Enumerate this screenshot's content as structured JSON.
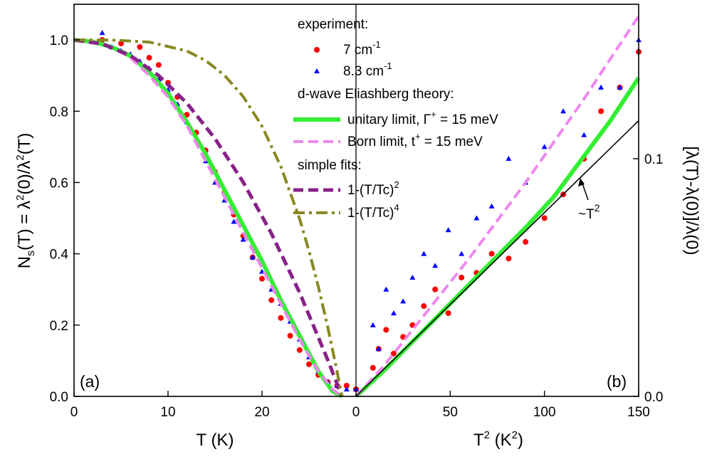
{
  "chart_data": [
    {
      "panel": "(a)",
      "type": "line+scatter",
      "xlabel": "T (K)",
      "ylabel": "N_s(T) = λ²(0)/λ²(T)",
      "xlim": [
        0,
        30
      ],
      "ylim": [
        0,
        1.1
      ],
      "x_ticks": [
        0,
        10,
        20
      ],
      "y_ticks": [
        "0.0",
        "0.2",
        "0.4",
        "0.6",
        "0.8",
        "1.0"
      ],
      "series": [
        {
          "name": "7 cm-1",
          "style": "scatter",
          "marker": "circle",
          "color": "#ff0000",
          "x": [
            3,
            5,
            7,
            8,
            9,
            10,
            11,
            12,
            13,
            14,
            15,
            16,
            17,
            18,
            19,
            20,
            21,
            22,
            23,
            24,
            25,
            26,
            27,
            28,
            29,
            30
          ],
          "y": [
            1.0,
            0.99,
            0.98,
            0.95,
            0.93,
            0.88,
            0.84,
            0.79,
            0.74,
            0.69,
            0.63,
            0.57,
            0.51,
            0.45,
            0.39,
            0.33,
            0.27,
            0.22,
            0.17,
            0.13,
            0.09,
            0.06,
            0.04,
            0.03,
            0.03,
            0.02
          ]
        },
        {
          "name": "8.3 cm-1",
          "style": "scatter",
          "marker": "triangle",
          "color": "#0000ff",
          "x": [
            3,
            4,
            5,
            6,
            7,
            8,
            9,
            10,
            11,
            12,
            13,
            14,
            15,
            16,
            17,
            18,
            19,
            20,
            21,
            22,
            23,
            24,
            25,
            26,
            27,
            28,
            29,
            30
          ],
          "y": [
            1.02,
            0.98,
            0.97,
            0.96,
            0.94,
            0.92,
            0.89,
            0.86,
            0.82,
            0.77,
            0.72,
            0.66,
            0.6,
            0.55,
            0.49,
            0.44,
            0.39,
            0.35,
            0.3,
            0.26,
            0.21,
            0.16,
            0.11,
            0.07,
            0.04,
            0.03,
            0.02,
            0.02
          ]
        },
        {
          "name": "unitary limit, Γ⁺ = 15 meV",
          "style": "solid",
          "color": "#33ee33",
          "x": [
            0,
            2,
            4,
            6,
            8,
            10,
            12,
            14,
            16,
            18,
            20,
            22,
            24,
            26,
            27.5,
            28.5
          ],
          "y": [
            1.0,
            0.995,
            0.98,
            0.955,
            0.91,
            0.85,
            0.77,
            0.68,
            0.58,
            0.48,
            0.38,
            0.27,
            0.17,
            0.07,
            0.015,
            0.0
          ]
        },
        {
          "name": "Born limit, t⁺ = 15 meV",
          "style": "dashed",
          "color": "#ee88ee",
          "x": [
            0,
            2,
            4,
            6,
            8,
            10,
            12,
            14,
            16,
            18,
            20,
            22,
            24,
            26,
            27.5,
            28.5
          ],
          "y": [
            1.0,
            0.995,
            0.98,
            0.95,
            0.9,
            0.84,
            0.76,
            0.66,
            0.56,
            0.46,
            0.36,
            0.26,
            0.16,
            0.07,
            0.02,
            0.0
          ]
        },
        {
          "name": "1-(T/Tc)^2",
          "style": "dashed",
          "color": "#882288",
          "x": [
            0,
            3,
            6,
            9,
            12,
            15,
            18,
            21,
            24,
            27,
            28.5
          ],
          "y": [
            1.0,
            0.989,
            0.956,
            0.9,
            0.823,
            0.723,
            0.601,
            0.457,
            0.291,
            0.102,
            0.0
          ]
        },
        {
          "name": "1-(T/Tc)^4",
          "style": "dashdot",
          "color": "#888822",
          "x": [
            0,
            4,
            8,
            12,
            14,
            16,
            18,
            20,
            22,
            24,
            25,
            26,
            27,
            28,
            28.5
          ],
          "y": [
            1.0,
            0.9996,
            0.994,
            0.969,
            0.942,
            0.901,
            0.841,
            0.758,
            0.645,
            0.498,
            0.408,
            0.307,
            0.194,
            0.068,
            0.0
          ]
        }
      ]
    },
    {
      "panel": "(b)",
      "type": "line+scatter",
      "xlabel": "T² (K²)",
      "ylabel": "[λ(T)-λ(0)]/λ(0)",
      "xlim": [
        0,
        150
      ],
      "ylim": [
        0,
        0.165
      ],
      "x_ticks": [
        0,
        50,
        100,
        150
      ],
      "y_ticks": [
        "0.0",
        "0.1"
      ],
      "annotation": "~T²",
      "series": [
        {
          "name": "7 cm-1",
          "style": "scatter",
          "marker": "circle",
          "color": "#ff0000",
          "x": [
            9,
            12,
            16,
            20,
            25,
            30,
            36,
            42,
            49,
            56,
            64,
            72,
            81,
            90,
            100,
            110,
            121,
            130,
            140,
            150
          ],
          "y": [
            0.012,
            0.02,
            0.028,
            0.018,
            0.025,
            0.03,
            0.038,
            0.045,
            0.035,
            0.05,
            0.052,
            0.06,
            0.058,
            0.065,
            0.075,
            0.085,
            0.1,
            0.12,
            0.13,
            0.145
          ]
        },
        {
          "name": "8.3 cm-1",
          "style": "scatter",
          "marker": "triangle",
          "color": "#0000ff",
          "x": [
            9,
            12,
            16,
            20,
            25,
            30,
            36,
            42,
            49,
            56,
            64,
            72,
            81,
            90,
            100,
            110,
            121,
            130,
            140,
            150
          ],
          "y": [
            0.03,
            0.02,
            0.045,
            0.035,
            0.04,
            0.05,
            0.06,
            0.055,
            0.07,
            0.06,
            0.075,
            0.08,
            0.1,
            0.09,
            0.105,
            0.12,
            0.11,
            0.13,
            0.13,
            0.15
          ]
        },
        {
          "name": "unitary limit, Γ⁺ = 15 meV",
          "style": "solid",
          "color": "#33ee33",
          "x": [
            0,
            15,
            30,
            45,
            60,
            75,
            90,
            105,
            120,
            135,
            150
          ],
          "y": [
            0,
            0.011,
            0.023,
            0.035,
            0.047,
            0.059,
            0.071,
            0.084,
            0.1,
            0.116,
            0.134
          ]
        },
        {
          "name": "Born limit, t⁺ = 15 meV",
          "style": "dashed",
          "color": "#ee88ee",
          "x": [
            0,
            15,
            30,
            45,
            60,
            75,
            90,
            105,
            120,
            135,
            150
          ],
          "y": [
            0,
            0.013,
            0.028,
            0.043,
            0.058,
            0.074,
            0.09,
            0.107,
            0.124,
            0.142,
            0.16
          ]
        },
        {
          "name": "~T²",
          "style": "solid",
          "color": "#000000",
          "x": [
            0,
            150
          ],
          "y": [
            0,
            0.116
          ]
        }
      ]
    }
  ],
  "legend": {
    "header_experiment": "experiment:",
    "entry_7": "7 cm",
    "entry_7_sup": "-1",
    "entry_83": "8.3 cm",
    "entry_83_sup": "-1",
    "header_theory": "d-wave Eliashberg theory:",
    "entry_unitary": "unitary limit, Γ",
    "entry_unitary_sup": "+",
    "entry_unitary_tail": " = 15 meV",
    "entry_born": "Born limit, t",
    "entry_born_sup": "+",
    "entry_born_tail": " = 15 meV",
    "header_fits": "simple fits:",
    "entry_fit2": "1-(T/Tc)",
    "entry_fit2_sup": "2",
    "entry_fit4": "1-(T/Tc)",
    "entry_fit4_sup": "4"
  },
  "labels": {
    "left_y_label": "N",
    "left_y_sub": "s",
    "left_y_mid": "(T) = λ",
    "left_y_sup1": "2",
    "left_y_mid2": "(0)/λ",
    "left_y_sup2": "2",
    "left_y_tail": "(T)",
    "right_y_label": "[λ(T)-λ(0)]/λ(0)",
    "x_left_label": "T (K)",
    "x_right_label_main": "T",
    "x_right_label_sup": "2",
    "x_right_label_tail": " (K",
    "x_right_label_sup2": "2",
    "x_right_label_end": ")",
    "panel_a": "(a)",
    "panel_b": "(b)",
    "annotation_main": "~T",
    "annotation_sup": "2",
    "center_tick": "0"
  }
}
